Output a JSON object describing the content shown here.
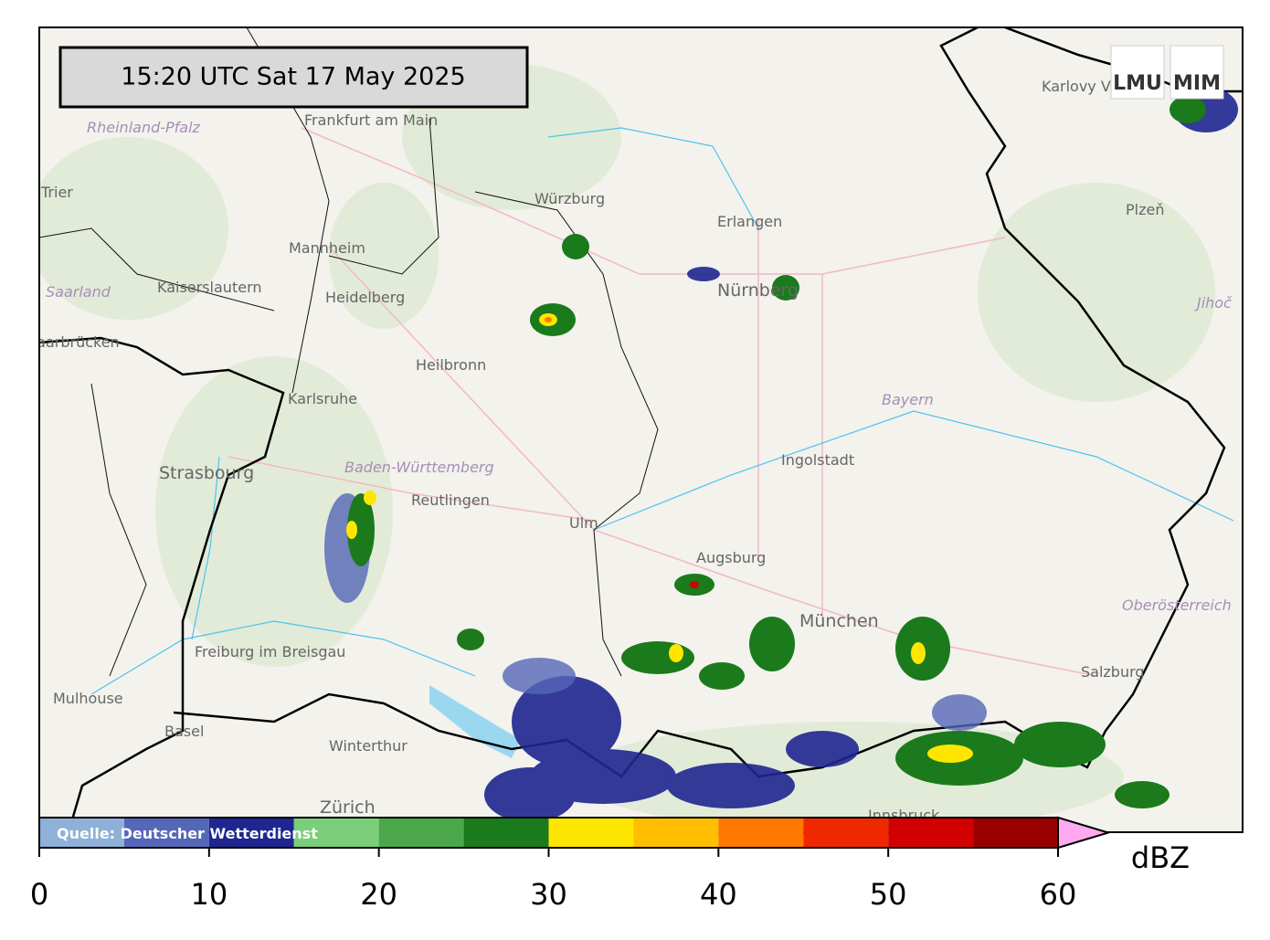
{
  "timestamp": "15:20 UTC  Sat 17 May 2025",
  "logos": [
    "LMU",
    "MIM"
  ],
  "places": [
    "Frankfurt am Main",
    "Rheinland-Pfalz",
    "Trier",
    "Mannheim",
    "Heidelberg",
    "Kaiserslautern",
    "Saarland",
    "Saarbrücken",
    "Karlsruhe",
    "Heilbronn",
    "Würzburg",
    "Erlangen",
    "Nürnberg",
    "Strasbourg",
    "Baden-Württemberg",
    "Reutlingen",
    "Ulm",
    "Augsburg",
    "Ingolstadt",
    "Bayern",
    "München",
    "Freiburg im Breisgau",
    "Mulhouse",
    "Basel",
    "Winterthur",
    "Zürich",
    "Salzburg",
    "Oberösterreich",
    "Karlovy Vary",
    "Plzeň",
    "Jihoč",
    "Innsbruck"
  ],
  "colorbar": {
    "bins": [
      0,
      5,
      10,
      15,
      20,
      25,
      30,
      35,
      40,
      45,
      50,
      55,
      60
    ],
    "colors": [
      "#8fb0d8",
      "#5567b8",
      "#1f2690",
      "#7bcf7b",
      "#4aa84a",
      "#1b7a1b",
      "#ffe600",
      "#ffbf00",
      "#ff7800",
      "#f02800",
      "#d20000",
      "#980000"
    ],
    "extend_color": "#ffaaf0",
    "ticks": [
      0,
      10,
      20,
      30,
      40,
      50,
      60
    ],
    "label": "dBZ",
    "source": "Quelle: Deutscher Wetterdienst"
  }
}
